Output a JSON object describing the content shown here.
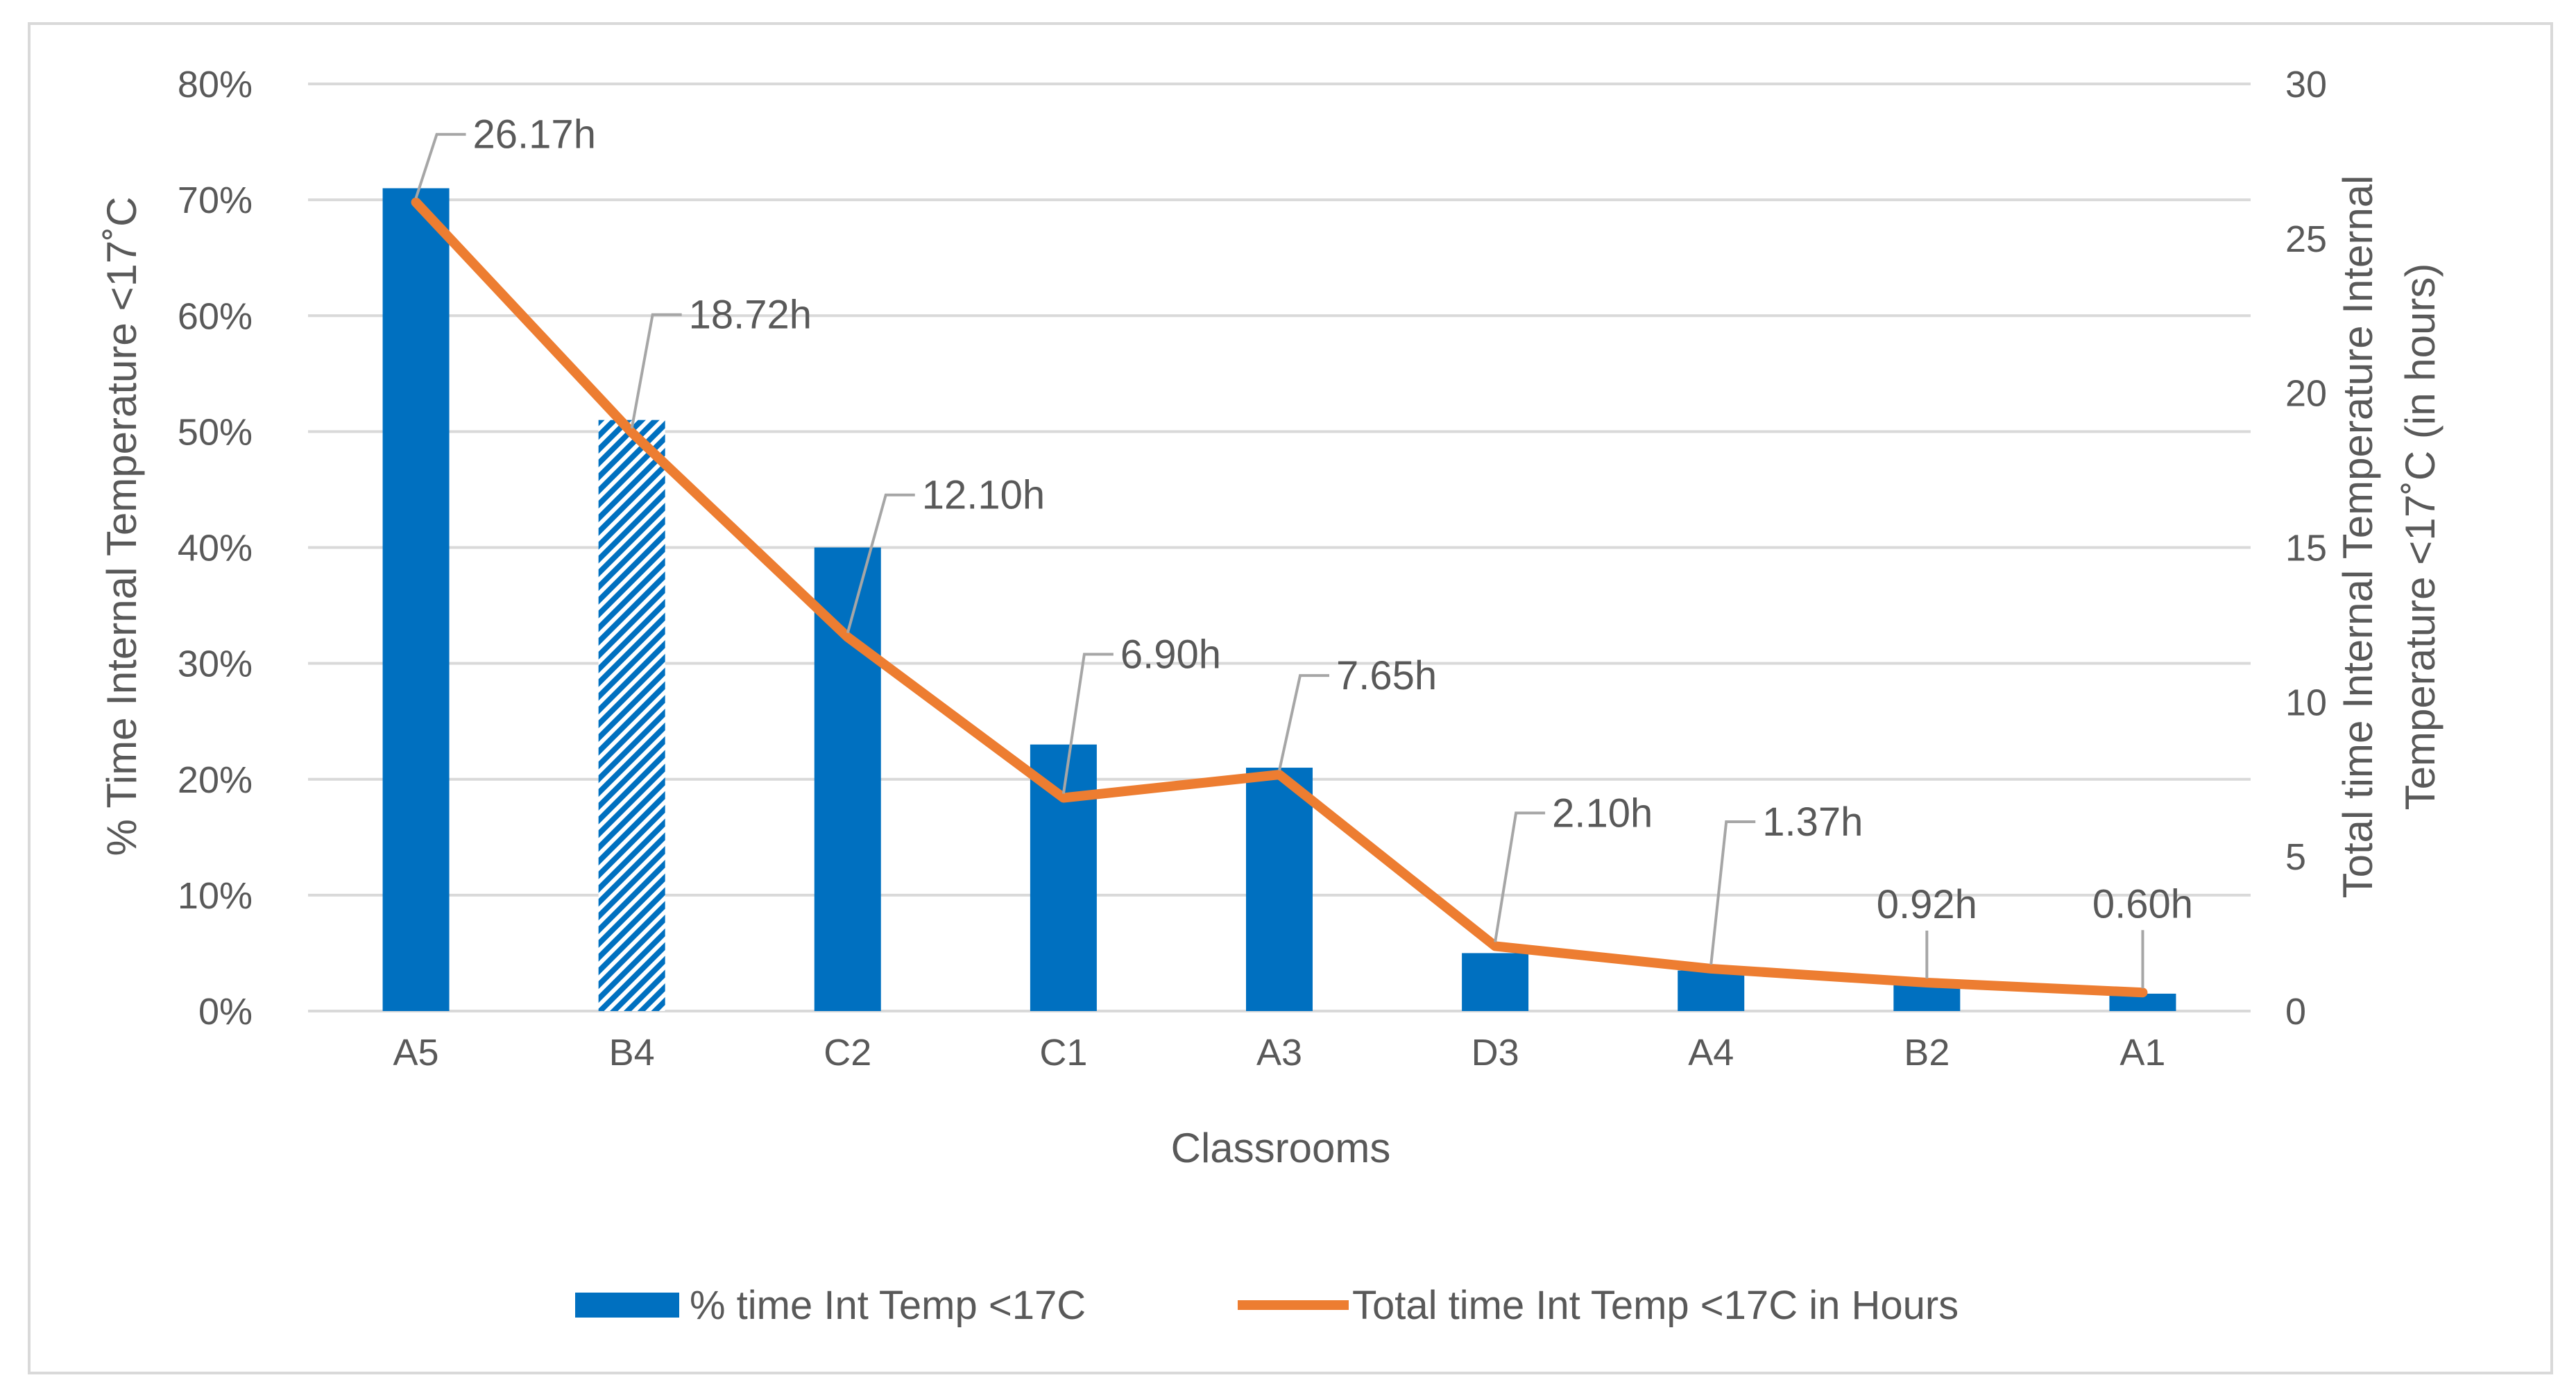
{
  "chart_data": {
    "type": "bar+line",
    "categories": [
      "A5",
      "B4",
      "C2",
      "C1",
      "A3",
      "D3",
      "A4",
      "B2",
      "A1"
    ],
    "series": [
      {
        "name": "% time Int Temp <17C",
        "type": "bar",
        "axis": "left",
        "values": [
          71,
          51,
          40,
          23,
          21,
          5,
          3.5,
          2.3,
          1.5
        ],
        "color": "#0070c0",
        "patterned_categories": [
          "B4"
        ]
      },
      {
        "name": "Total time Int Temp <17C in Hours",
        "type": "line",
        "axis": "right",
        "values": [
          26.17,
          18.72,
          12.1,
          6.9,
          7.65,
          2.1,
          1.37,
          0.92,
          0.6
        ],
        "labels": [
          "26.17h",
          "18.72h",
          "12.10h",
          "6.90h",
          "7.65h",
          "2.10h",
          "1.37h",
          "0.92h",
          "0.60h"
        ],
        "color": "#ed7d31"
      }
    ],
    "left_axis": {
      "label": "% Time Internal Temperature <17˚C",
      "ticks": [
        "0%",
        "10%",
        "20%",
        "30%",
        "40%",
        "50%",
        "60%",
        "70%",
        "80%"
      ],
      "ylim": [
        0,
        80
      ]
    },
    "right_axis": {
      "label_line1": "Total time Internal Temperature Internal",
      "label_line2": "Temperature <17˚C (in hours)",
      "ticks": [
        "0",
        "5",
        "10",
        "15",
        "20",
        "25",
        "30"
      ],
      "ylim": [
        0,
        30
      ]
    },
    "xlabel": "Classrooms",
    "grid": true,
    "legend_position": "bottom",
    "colors": {
      "gridline": "#d9d9d9",
      "leader": "#a6a6a6",
      "text": "#595959"
    }
  }
}
